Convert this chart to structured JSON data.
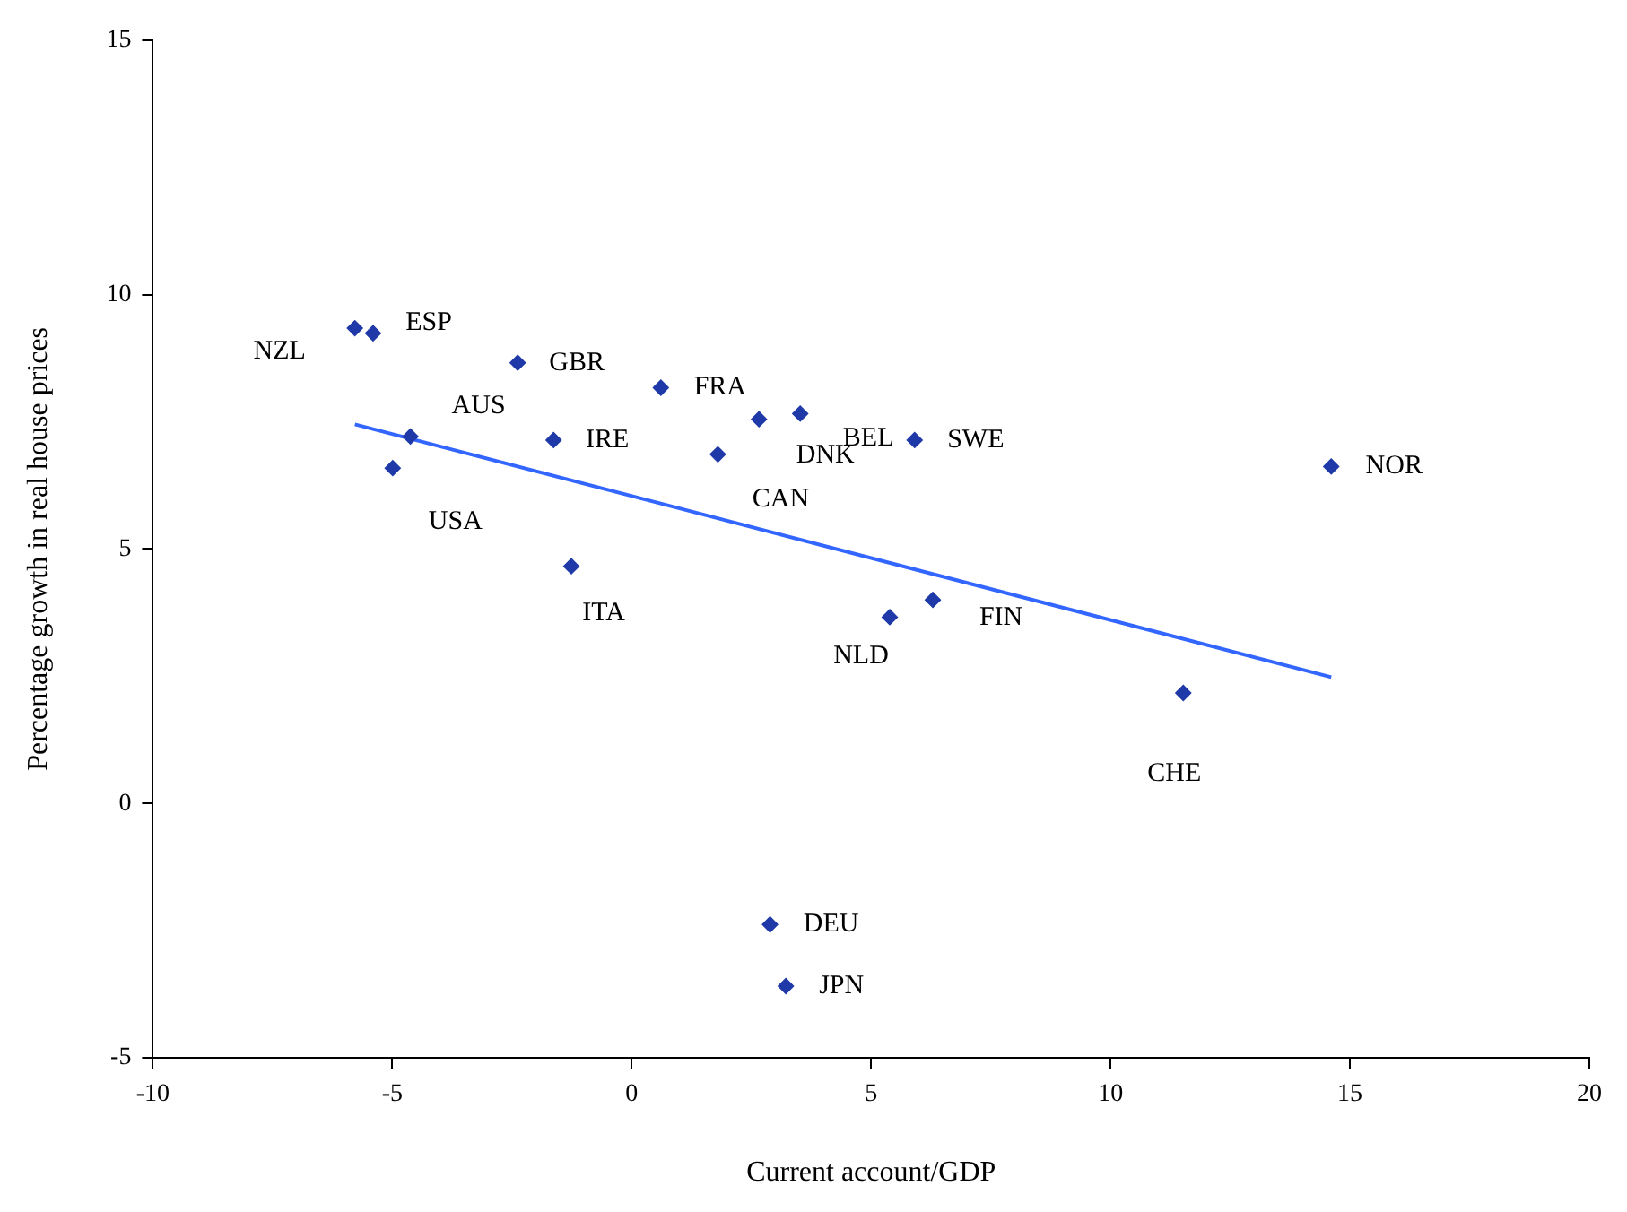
{
  "chart_data": {
    "type": "scatter",
    "xlabel": "Current account/GDP",
    "ylabel": "Percentage growth in real house prices",
    "xlim": [
      -10,
      20
    ],
    "xticks": [
      -10,
      -5,
      0,
      5,
      10,
      15,
      20
    ],
    "ylim": [
      -5,
      15
    ],
    "yticks": [
      -5,
      0,
      5,
      10,
      15
    ],
    "grid": false,
    "legend": false,
    "marker": "diamond",
    "series": [
      {
        "color": "#1f3aa8",
        "x": [
          -5.78,
          -5.4,
          -2.38,
          -4.62,
          -4.99,
          -1.63,
          0.61,
          3.52,
          2.66,
          1.8,
          5.91,
          14.61,
          -1.26,
          5.39,
          6.29,
          11.52,
          2.89,
          3.22
        ],
        "values": [
          9.34,
          9.24,
          8.66,
          7.21,
          6.59,
          7.14,
          8.17,
          7.66,
          7.55,
          6.86,
          7.14,
          6.62,
          4.66,
          3.66,
          4.0,
          2.17,
          -2.38,
          -3.59
        ]
      },
      {
        "type": "line",
        "color": "#3366ff",
        "marker": "none",
        "x": [
          -5.78,
          14.61
        ],
        "values": [
          7.45,
          2.48
        ]
      }
    ],
    "annotations": [
      {
        "text": "NZL",
        "x": -5.78,
        "y": 9.34
      },
      {
        "text": "ESP",
        "x": -5.4,
        "y": 9.24
      },
      {
        "text": "GBR",
        "x": -2.38,
        "y": 8.66
      },
      {
        "text": "AUS",
        "x": -4.62,
        "y": 7.21
      },
      {
        "text": "USA",
        "x": -4.99,
        "y": 6.59
      },
      {
        "text": "IRE",
        "x": -1.63,
        "y": 7.14
      },
      {
        "text": "FRA",
        "x": 0.61,
        "y": 8.17
      },
      {
        "text": "BEL",
        "x": 3.52,
        "y": 7.66
      },
      {
        "text": "DNK",
        "x": 2.66,
        "y": 7.55
      },
      {
        "text": "CAN",
        "x": 1.8,
        "y": 6.86
      },
      {
        "text": "SWE",
        "x": 5.91,
        "y": 7.14
      },
      {
        "text": "NOR",
        "x": 14.61,
        "y": 6.62
      },
      {
        "text": "ITA",
        "x": -1.26,
        "y": 4.66
      },
      {
        "text": "NLD",
        "x": 5.39,
        "y": 3.66
      },
      {
        "text": "FIN",
        "x": 6.29,
        "y": 4.0
      },
      {
        "text": "CHE",
        "x": 11.52,
        "y": 2.17
      },
      {
        "text": "DEU",
        "x": 2.89,
        "y": -2.38
      },
      {
        "text": "JPN",
        "x": 3.22,
        "y": -3.59
      }
    ]
  }
}
